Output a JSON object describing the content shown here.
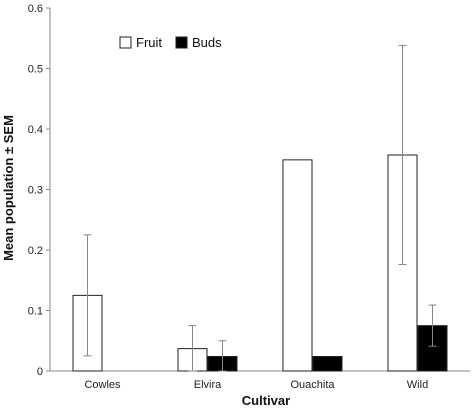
{
  "chart_data": {
    "type": "bar",
    "categories": [
      "Cowles",
      "Elvira",
      "Ouachita",
      "Wild"
    ],
    "series": [
      {
        "name": "Fruit",
        "values": [
          0.125,
          0.037,
          0.349,
          0.357
        ],
        "errors": [
          0.1,
          0.038,
          0.0,
          0.181
        ],
        "fill": "#ffffff"
      },
      {
        "name": "Buds",
        "values": [
          0.0,
          0.024,
          0.024,
          0.075
        ],
        "errors": [
          0.0,
          0.026,
          0.0,
          0.034
        ],
        "fill": "#000000"
      }
    ],
    "xlabel": "Cultivar",
    "ylabel": "Mean population ± SEM",
    "ylim": [
      0,
      0.6
    ],
    "yticks": [
      "0",
      "0.1",
      "0.2",
      "0.3",
      "0.4",
      "0.5",
      "0.6"
    ],
    "grid": false,
    "legend_position": "top-left",
    "colors": {
      "axis": "#888888",
      "bar_stroke": "#222222",
      "error_bar": "#888888"
    }
  }
}
